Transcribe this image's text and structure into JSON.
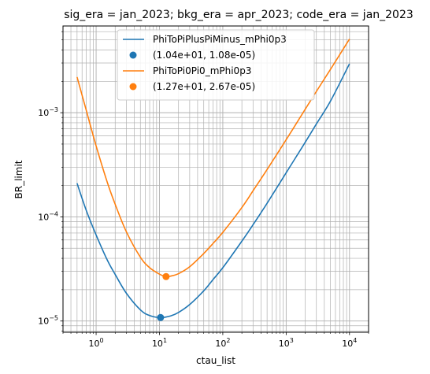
{
  "chart_data": {
    "type": "line",
    "title": "sig_era = jan_2023; bkg_era = apr_2023; code_era = jan_2023",
    "xlabel": "ctau_list",
    "ylabel": "BR_limit",
    "xscale": "log",
    "yscale": "log",
    "xlim": [
      0.3,
      20000
    ],
    "ylim": [
      7.8e-06,
      0.0068
    ],
    "grid": true,
    "legend_position": "top-center",
    "x_ticks": [
      {
        "value": 1,
        "base": "10",
        "exp": "0"
      },
      {
        "value": 10,
        "base": "10",
        "exp": "1"
      },
      {
        "value": 100,
        "base": "10",
        "exp": "2"
      },
      {
        "value": 1000,
        "base": "10",
        "exp": "3"
      },
      {
        "value": 10000,
        "base": "10",
        "exp": "4"
      }
    ],
    "y_ticks": [
      {
        "value": 1e-05,
        "base": "10",
        "exp": "−5"
      },
      {
        "value": 0.0001,
        "base": "10",
        "exp": "−4"
      },
      {
        "value": 0.001,
        "base": "10",
        "exp": "−3"
      }
    ],
    "series": [
      {
        "name": "PhiToPiPlusPiMinus_mPhi0p3",
        "color": "#1f77b4",
        "x": [
          0.5,
          0.7,
          1,
          1.5,
          2,
          3,
          5,
          7,
          10.4,
          15,
          20,
          30,
          50,
          70,
          100,
          200,
          300,
          500,
          1000,
          2000,
          3000,
          5000,
          10000
        ],
        "y": [
          0.00021,
          0.000115,
          6.7e-05,
          3.85e-05,
          2.8e-05,
          1.85e-05,
          1.28e-05,
          1.13e-05,
          1.08e-05,
          1.12e-05,
          1.21e-05,
          1.44e-05,
          1.95e-05,
          2.5e-05,
          3.25e-05,
          5.85e-05,
          8.4e-05,
          0.000135,
          0.000265,
          0.00052,
          0.00078,
          0.00129,
          0.00295
        ]
      },
      {
        "name": "",
        "type": "scatter",
        "color": "#1f77b4",
        "label": "(1.04e+01, 1.08e-05)",
        "x": [
          10.4
        ],
        "y": [
          1.08e-05
        ]
      },
      {
        "name": "PhiToPi0Pi0_mPhi0p3",
        "color": "#ff7f0e",
        "x": [
          0.5,
          0.7,
          1,
          1.5,
          2,
          3,
          5,
          7,
          10,
          12.7,
          15,
          20,
          30,
          50,
          70,
          100,
          200,
          300,
          500,
          1000,
          2000,
          3000,
          5000,
          10000
        ],
        "y": [
          0.0022,
          0.00105,
          0.00048,
          0.000215,
          0.000132,
          7.2e-05,
          4.1e-05,
          3.25e-05,
          2.82e-05,
          2.67e-05,
          2.7e-05,
          2.85e-05,
          3.32e-05,
          4.45e-05,
          5.55e-05,
          7.1e-05,
          0.000123,
          0.000178,
          0.000285,
          0.00055,
          0.00108,
          0.0016,
          0.0026,
          0.0051
        ]
      },
      {
        "name": "",
        "type": "scatter",
        "color": "#ff7f0e",
        "label": "(1.27e+01, 2.67e-05)",
        "x": [
          12.7
        ],
        "y": [
          2.67e-05
        ]
      }
    ]
  }
}
